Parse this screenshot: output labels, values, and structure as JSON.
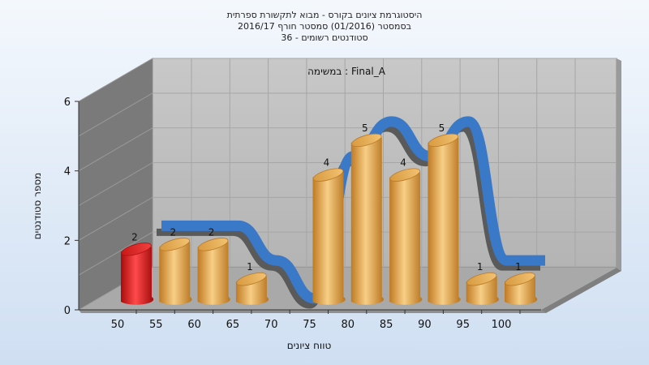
{
  "chart_data": {
    "type": "bar",
    "title_lines": [
      "היסטוגרמת ציונים בקורס - מבוא לתקשורת ספרתית",
      "בסמסטר  (01/2016)  סמסטר חורף 2016/17",
      "סטודנטים רשומים - 36"
    ],
    "annotation": "במשימה : Final_A",
    "xlabel": "טווח ציונים",
    "ylabel": "מספר סטודנטים",
    "x_ticks": [
      "50",
      "55",
      "60",
      "65",
      "70",
      "75",
      "80",
      "85",
      "90",
      "95",
      "100"
    ],
    "y_ticks": [
      "0",
      "2",
      "4",
      "6"
    ],
    "ylim": [
      0,
      6
    ],
    "categories": [
      "50-55",
      "55-60",
      "60-65",
      "65-70",
      "70-75",
      "75-80",
      "80-85",
      "85-90",
      "90-95",
      "95-100",
      "100"
    ],
    "values": [
      2,
      2,
      2,
      1,
      0,
      4,
      5,
      4,
      5,
      1,
      1
    ],
    "grid": true,
    "colors": {
      "highlight_bar": "#e02020",
      "bar": "#e8a850",
      "trend_ribbon": "#3a78c8",
      "wall": "#bdbdbd",
      "floor": "#a8a8a8",
      "side_wall": "#7a7a7a"
    }
  }
}
